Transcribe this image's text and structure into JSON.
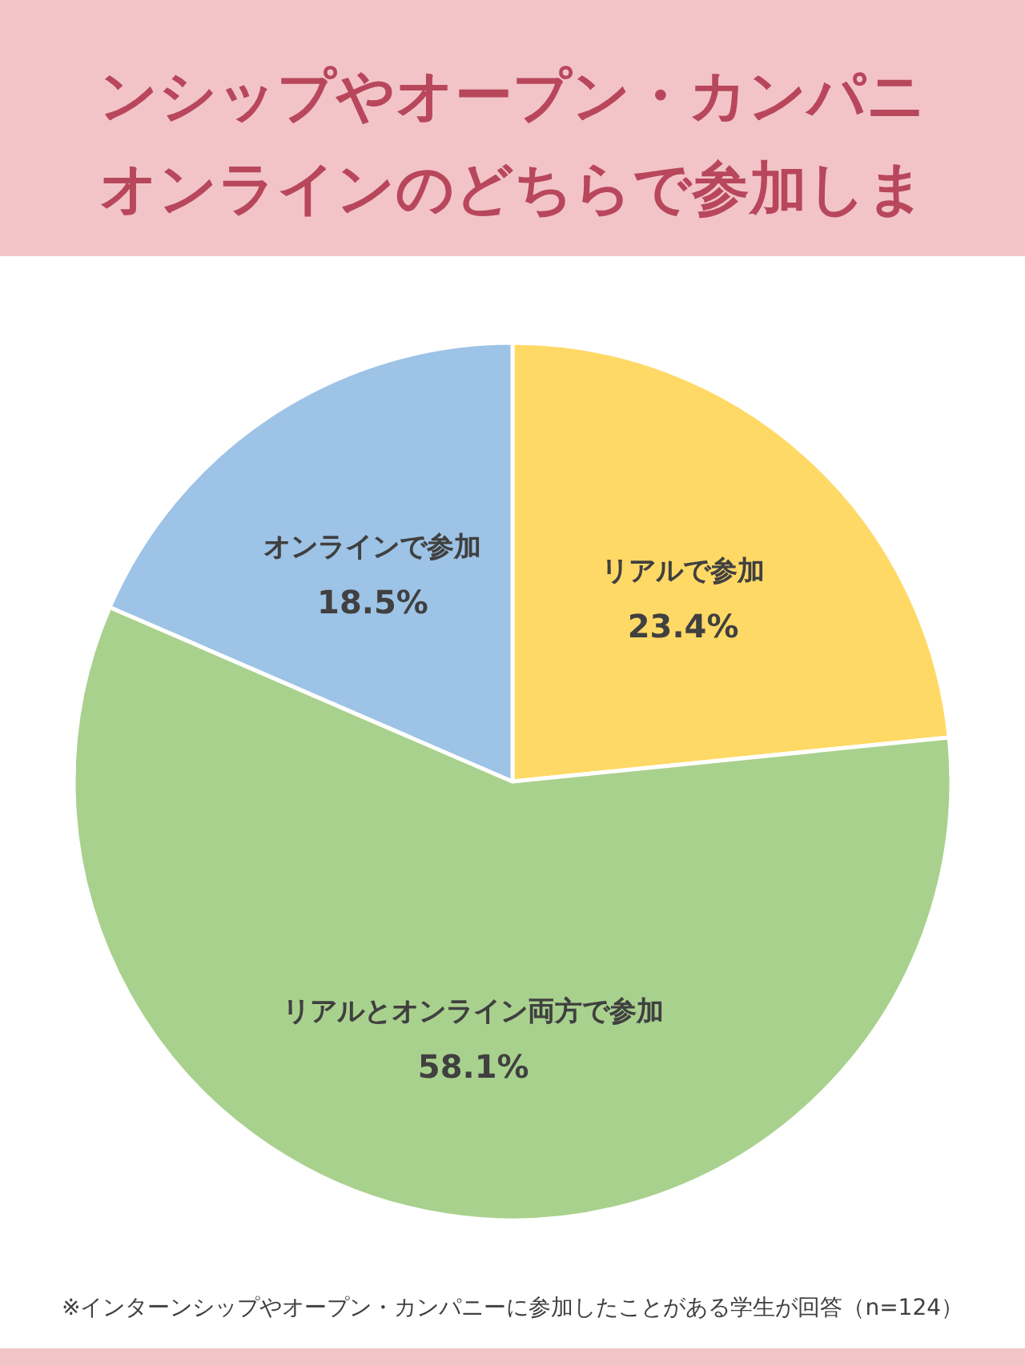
{
  "chart_data": {
    "type": "pie",
    "title": "ンシップやオープン・カンパニオンラインのどちらで参加しま",
    "categories": [
      "リアルで参加",
      "リアルとオンライン両方で参加",
      "オンラインで参加"
    ],
    "values": [
      23.4,
      58.1,
      18.5
    ],
    "colors": [
      "#ffd966",
      "#a9d18e",
      "#9dc3e6"
    ],
    "value_labels": [
      "23.4%",
      "58.1%",
      "18.5%"
    ],
    "annotations": [
      "※インターンシップやオープン・カンパニーに参加したことがある学生が回答（n=124）"
    ]
  }
}
